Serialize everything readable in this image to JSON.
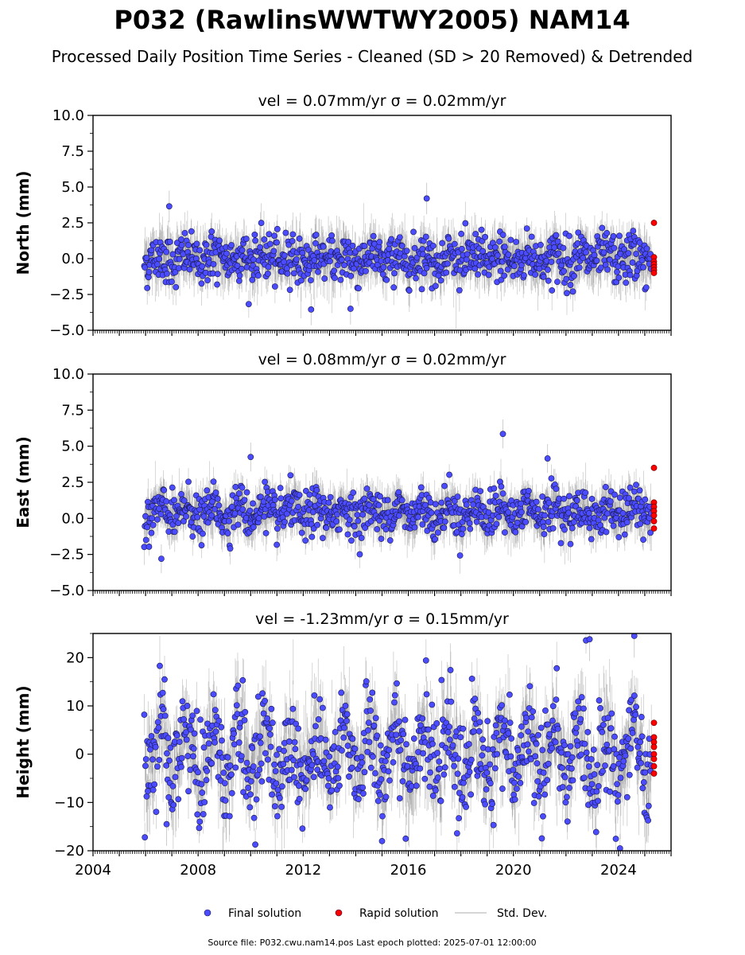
{
  "title": "P032 (RawlinsWWTWY2005) NAM14",
  "subtitle": "Processed Daily Position Time Series - Cleaned (SD > 20 Removed) & Detrended",
  "footer": "Source file: P032.cwu.nam14.pos  Last epoch plotted: 2025-07-01 12:00:00",
  "colors": {
    "final": "#4b4bff",
    "final_edge": "#1a1a4a",
    "rapid": "#ff0000",
    "stddev": "#808080"
  },
  "chart_data": [
    {
      "type": "scatter",
      "title": "vel = 0.07mm/yr   σ = 0.02mm/yr",
      "ylabel": "North (mm)",
      "xlim": [
        2004,
        2026
      ],
      "ylim": [
        -5,
        10
      ],
      "yticks": [
        -5.0,
        -2.5,
        0.0,
        2.5,
        5.0,
        7.5,
        10.0
      ],
      "ytick_labels": [
        "−5.0",
        "−2.5",
        "0.0",
        "2.5",
        "5.0",
        "7.5",
        "10.0"
      ],
      "series": [
        {
          "name": "Final solution",
          "x_range": [
            2005.95,
            2025.25
          ],
          "typical_range": [
            -2.5,
            2.5
          ]
        },
        {
          "name": "Rapid solution",
          "x": [
            2025.35,
            2025.35,
            2025.35,
            2025.35,
            2025.35,
            2025.35,
            2025.35
          ],
          "y": [
            2.5,
            0.1,
            -0.2,
            -0.4,
            -0.6,
            -0.8,
            -1.0
          ]
        }
      ],
      "highlights": [
        {
          "x": 2016.7,
          "y": 4.2
        },
        {
          "x": 2006.9,
          "y": 3.65
        },
        {
          "x": 2013.8,
          "y": -3.5
        },
        {
          "x": 2012.3,
          "y": -3.55
        }
      ]
    },
    {
      "type": "scatter",
      "title": "vel = 0.08mm/yr   σ = 0.02mm/yr",
      "ylabel": "East (mm)",
      "xlim": [
        2004,
        2026
      ],
      "ylim": [
        -5,
        10
      ],
      "yticks": [
        -5.0,
        -2.5,
        0.0,
        2.5,
        5.0,
        7.5,
        10.0
      ],
      "ytick_labels": [
        "−5.0",
        "−2.5",
        "0.0",
        "2.5",
        "5.0",
        "7.5",
        "10.0"
      ],
      "series": [
        {
          "name": "Final solution",
          "x_range": [
            2005.95,
            2025.25
          ],
          "typical_range": [
            -1.5,
            2.5
          ]
        },
        {
          "name": "Rapid solution",
          "x": [
            2025.35,
            2025.35,
            2025.35,
            2025.35,
            2025.35,
            2025.35,
            2025.35
          ],
          "y": [
            3.5,
            1.1,
            0.8,
            0.5,
            0.2,
            -0.2,
            -0.7
          ]
        }
      ],
      "highlights": [
        {
          "x": 2019.6,
          "y": 5.85
        },
        {
          "x": 2021.3,
          "y": 4.15
        },
        {
          "x": 2010.0,
          "y": 4.25
        },
        {
          "x": 2006.6,
          "y": -2.8
        }
      ]
    },
    {
      "type": "scatter",
      "title": "vel = -1.23mm/yr   σ = 0.15mm/yr",
      "ylabel": "Height (mm)",
      "xlim": [
        2004,
        2026
      ],
      "ylim": [
        -20,
        25
      ],
      "yticks": [
        -20,
        -10,
        0,
        10,
        20
      ],
      "ytick_labels": [
        "−20",
        "−10",
        "0",
        "10",
        "20"
      ],
      "xticks": [
        2004,
        2008,
        2012,
        2016,
        2020,
        2024
      ],
      "xtick_labels": [
        "2004",
        "2008",
        "2012",
        "2016",
        "2020",
        "2024"
      ],
      "series": [
        {
          "name": "Final solution",
          "x_range": [
            2005.95,
            2025.25
          ],
          "typical_range": [
            -12,
            18
          ]
        },
        {
          "name": "Rapid solution",
          "x": [
            2025.35,
            2025.35,
            2025.35,
            2025.35,
            2025.35,
            2025.35,
            2025.35,
            2025.35
          ],
          "y": [
            6.5,
            3.5,
            2.5,
            1.5,
            0.0,
            -1.0,
            -2.5,
            -4.0
          ]
        }
      ],
      "highlights": [
        {
          "x": 2024.6,
          "y": 24.5
        },
        {
          "x": 2015.0,
          "y": -18.0
        },
        {
          "x": 2006.8,
          "y": -14.5
        },
        {
          "x": 2022.9,
          "y": 23.8
        }
      ]
    }
  ],
  "legend": {
    "placement": "bottom-center",
    "items": [
      {
        "label": "Final solution",
        "marker": "circle",
        "color": "#4b4bff"
      },
      {
        "label": "Rapid solution",
        "marker": "circle",
        "color": "#ff0000"
      },
      {
        "label": "Std. Dev.",
        "marker": "line",
        "color": "#c8c8c8"
      }
    ]
  }
}
